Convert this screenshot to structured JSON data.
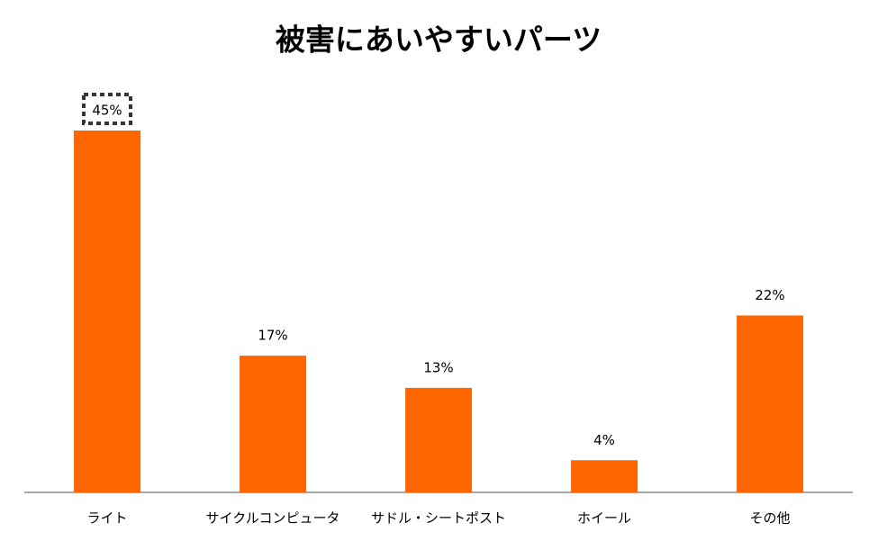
{
  "chart_data": {
    "type": "bar",
    "title": "被害にあいやすいパーツ",
    "categories": [
      "ライト",
      "サイクルコンピュータ",
      "サドル・シートポスト",
      "ホイール",
      "その他"
    ],
    "values": [
      45,
      17,
      13,
      4,
      22
    ],
    "value_labels": [
      "45%",
      "17%",
      "13%",
      "4%",
      "22%"
    ],
    "color": "#ff6600"
  }
}
